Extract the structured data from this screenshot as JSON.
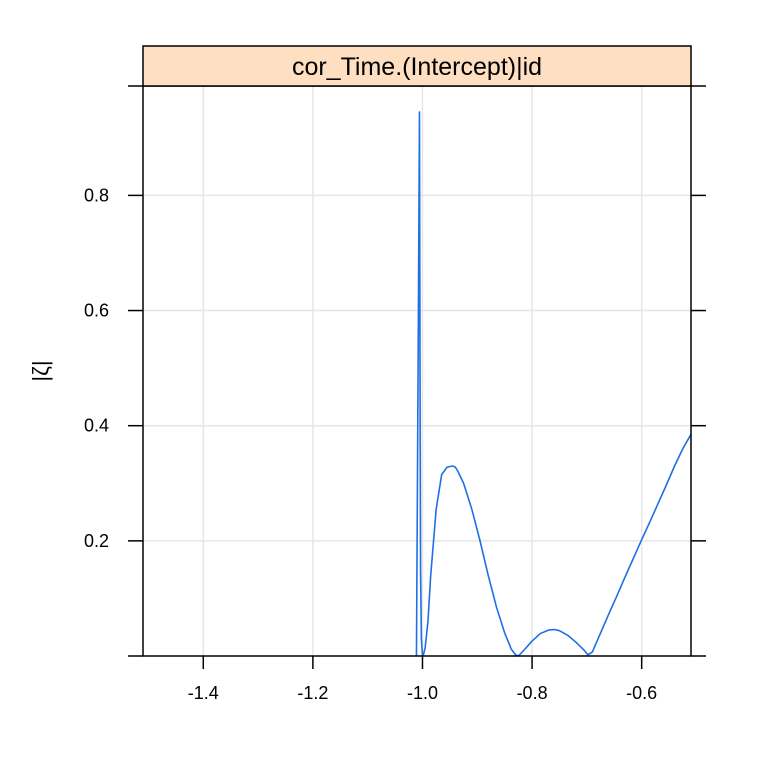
{
  "chart_data": {
    "type": "line",
    "title": "",
    "strip_label": "cor_Time.(Intercept)|id",
    "xlabel": "",
    "ylabel": "|ζ|",
    "xlim": [
      -1.51,
      -0.51
    ],
    "ylim": [
      0.0,
      0.99
    ],
    "x_ticks": [
      -1.4,
      -1.2,
      -1.0,
      -0.8,
      -0.6
    ],
    "x_tick_labels": [
      "-1.4",
      "-1.2",
      "-1.0",
      "-0.8",
      "-0.6"
    ],
    "y_ticks": [
      0.2,
      0.4,
      0.6,
      0.8
    ],
    "y_tick_labels": [
      "0.2",
      "0.4",
      "0.6",
      "0.8"
    ],
    "grid": true,
    "legend": "none",
    "colors": {
      "line": "#1f6fe5",
      "strip_fill": "#ffdfc2",
      "grid": "#e6e6e6",
      "frame": "#000000"
    },
    "series": [
      {
        "x": [
          -1.011,
          -1.008,
          -1.0055,
          -1.0045,
          -1.0035,
          -1.002,
          -1.0,
          -0.998,
          -0.995,
          -0.99,
          -0.985,
          -0.975,
          -0.965,
          -0.955,
          -0.945,
          -0.94,
          -0.935,
          -0.925,
          -0.91,
          -0.895,
          -0.88,
          -0.865,
          -0.85,
          -0.838,
          -0.83,
          -0.825,
          -0.815,
          -0.8,
          -0.785,
          -0.77,
          -0.76,
          -0.75,
          -0.735,
          -0.72,
          -0.705,
          -0.698,
          -0.69,
          -0.675,
          -0.66,
          -0.645,
          -0.63,
          -0.615,
          -0.6,
          -0.585,
          -0.57,
          -0.555,
          -0.54,
          -0.525,
          -0.51
        ],
        "y": [
          0.0,
          0.5,
          0.945,
          0.5,
          0.15,
          0.03,
          0.0,
          0.003,
          0.015,
          0.06,
          0.14,
          0.255,
          0.315,
          0.328,
          0.33,
          0.328,
          0.32,
          0.3,
          0.255,
          0.2,
          0.14,
          0.085,
          0.04,
          0.012,
          0.002,
          0.0,
          0.01,
          0.026,
          0.039,
          0.045,
          0.046,
          0.044,
          0.036,
          0.024,
          0.01,
          0.002,
          0.007,
          0.04,
          0.073,
          0.105,
          0.138,
          0.17,
          0.202,
          0.233,
          0.265,
          0.297,
          0.33,
          0.36,
          0.385
        ]
      }
    ]
  }
}
